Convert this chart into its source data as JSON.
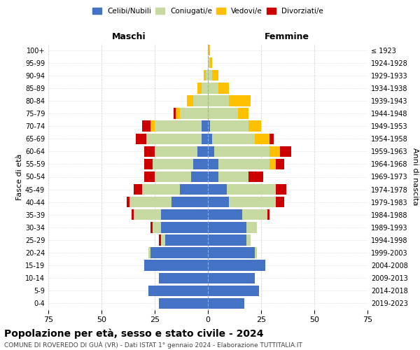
{
  "age_groups": [
    "0-4",
    "5-9",
    "10-14",
    "15-19",
    "20-24",
    "25-29",
    "30-34",
    "35-39",
    "40-44",
    "45-49",
    "50-54",
    "55-59",
    "60-64",
    "65-69",
    "70-74",
    "75-79",
    "80-84",
    "85-89",
    "90-94",
    "95-99",
    "100+"
  ],
  "birth_years": [
    "2019-2023",
    "2014-2018",
    "2009-2013",
    "2004-2008",
    "1999-2003",
    "1994-1998",
    "1989-1993",
    "1984-1988",
    "1979-1983",
    "1974-1978",
    "1969-1973",
    "1964-1968",
    "1959-1963",
    "1954-1958",
    "1949-1953",
    "1944-1948",
    "1939-1943",
    "1934-1938",
    "1929-1933",
    "1924-1928",
    "≤ 1923"
  ],
  "males": {
    "celibi": [
      23,
      28,
      23,
      30,
      27,
      20,
      22,
      22,
      17,
      13,
      8,
      7,
      5,
      3,
      3,
      0,
      0,
      0,
      0,
      0,
      0
    ],
    "coniugati": [
      0,
      0,
      0,
      0,
      1,
      2,
      4,
      13,
      20,
      18,
      17,
      19,
      20,
      26,
      22,
      13,
      7,
      3,
      1,
      0,
      0
    ],
    "vedovi": [
      0,
      0,
      0,
      0,
      0,
      0,
      0,
      0,
      0,
      0,
      0,
      0,
      0,
      0,
      2,
      2,
      3,
      2,
      1,
      0,
      0
    ],
    "divorziati": [
      0,
      0,
      0,
      0,
      0,
      1,
      1,
      1,
      1,
      4,
      5,
      4,
      5,
      5,
      4,
      1,
      0,
      0,
      0,
      0,
      0
    ]
  },
  "females": {
    "nubili": [
      17,
      24,
      22,
      27,
      22,
      18,
      18,
      16,
      10,
      9,
      5,
      5,
      3,
      2,
      1,
      0,
      0,
      0,
      0,
      0,
      0
    ],
    "coniugate": [
      0,
      0,
      0,
      0,
      1,
      2,
      5,
      12,
      22,
      23,
      14,
      24,
      26,
      20,
      18,
      14,
      10,
      5,
      2,
      1,
      0
    ],
    "vedove": [
      0,
      0,
      0,
      0,
      0,
      0,
      0,
      0,
      0,
      0,
      0,
      3,
      5,
      7,
      6,
      5,
      10,
      5,
      3,
      1,
      1
    ],
    "divorziate": [
      0,
      0,
      0,
      0,
      0,
      0,
      0,
      1,
      4,
      5,
      7,
      4,
      5,
      2,
      0,
      0,
      0,
      0,
      0,
      0,
      0
    ]
  },
  "colors": {
    "celibi": "#4472c4",
    "coniugati": "#c5d9a0",
    "vedovi": "#ffc000",
    "divorziati": "#cc0000"
  },
  "title": "Popolazione per età, sesso e stato civile - 2024",
  "subtitle": "COMUNE DI ROVEREDO DI GUÀ (VR) - Dati ISTAT 1° gennaio 2024 - Elaborazione TUTTITALIA.IT",
  "xlabel_left": "Maschi",
  "xlabel_right": "Femmine",
  "ylabel_left": "Fasce di età",
  "ylabel_right": "Anni di nascita",
  "xlim": 75,
  "xticks": [
    -75,
    -50,
    -25,
    0,
    25,
    50,
    75
  ],
  "legend_labels": [
    "Celibi/Nubili",
    "Coniugati/e",
    "Vedovi/e",
    "Divorziati/e"
  ],
  "background_color": "#ffffff",
  "grid_color": "#cccccc"
}
